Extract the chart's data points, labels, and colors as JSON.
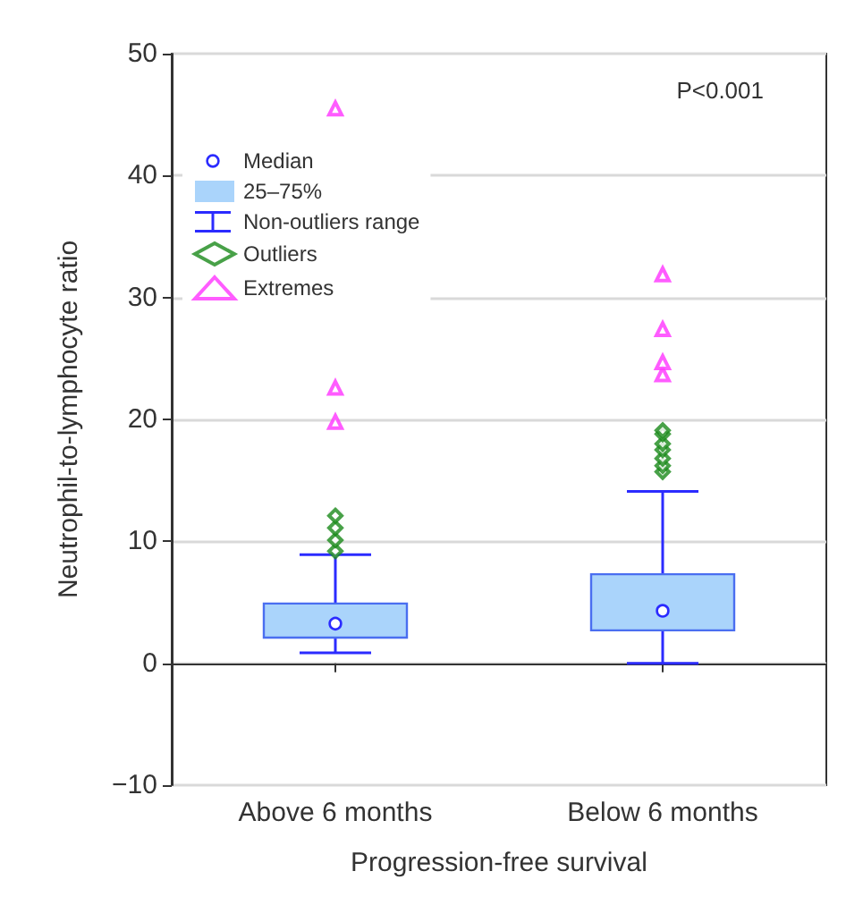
{
  "chart_data": {
    "type": "box",
    "xlabel": "Progression-free survival",
    "ylabel": "Neutrophil-to-lymphocyte ratio",
    "categories": [
      "Above 6 months",
      "Below 6 months"
    ],
    "ylim": [
      -10,
      50
    ],
    "yticks": [
      -10,
      0,
      10,
      20,
      30,
      40,
      50
    ],
    "grid": "y",
    "legend": "top left",
    "annotations": [
      "P<0.001",
      "Median",
      "Non-outliers range"
    ],
    "series": [
      {
        "name": "25–75%",
        "type": "box",
        "color": "#aad4fb",
        "boxes": [
          {
            "low": 0.85,
            "q1": 2.1,
            "median": 3.25,
            "q3": 4.9,
            "high": 8.9
          },
          {
            "low": 0,
            "q1": 2.7,
            "median": 4.3,
            "q3": 7.3,
            "high": 14.1
          }
        ]
      },
      {
        "name": "Outliers",
        "type": "scatter",
        "marker": "diamond",
        "color": "#1a8a1a",
        "x": [
          "Above 6 months",
          "Above 6 months",
          "Above 6 months",
          "Above 6 months",
          "Below 6 months",
          "Below 6 months",
          "Below 6 months",
          "Below 6 months",
          "Below 6 months",
          "Below 6 months",
          "Below 6 months"
        ],
        "values": [
          9.2,
          10.1,
          11.1,
          12.1,
          15.7,
          16.2,
          16.8,
          17.5,
          18,
          18.8,
          19.1
        ]
      },
      {
        "name": "Extremes",
        "type": "scatter",
        "marker": "triangle",
        "color": "#ff33ff",
        "x": [
          "Above 6 months",
          "Above 6 months",
          "Above 6 months",
          "Below 6 months",
          "Below 6 months",
          "Below 6 months",
          "Below 6 months"
        ],
        "values": [
          19.8,
          22.6,
          45.5,
          23.7,
          24.7,
          27.4,
          31.9
        ]
      }
    ]
  }
}
